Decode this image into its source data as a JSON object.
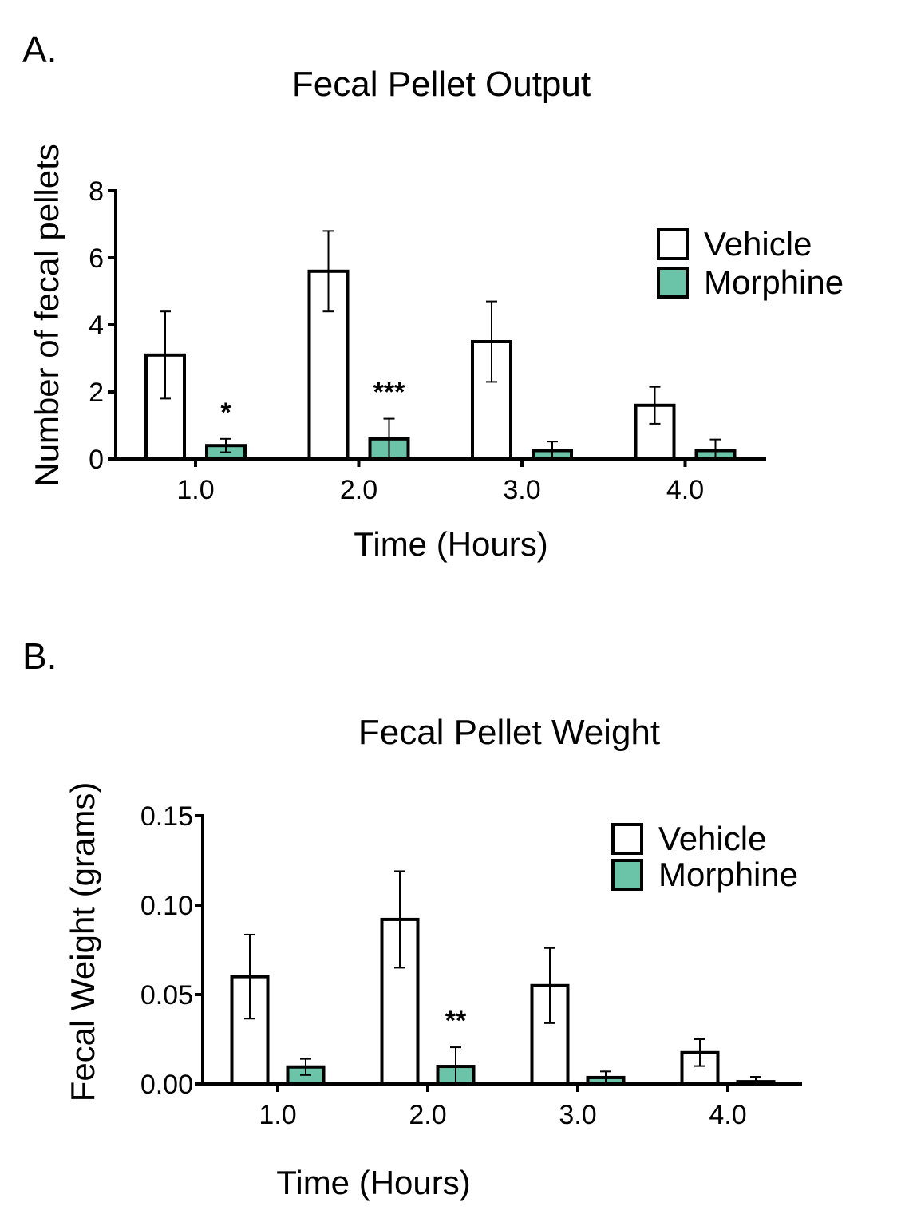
{
  "colors": {
    "vehicle": "#ffffff",
    "morphine": "#6cc4a8",
    "stroke": "#000000"
  },
  "chart_data": [
    {
      "panel_label": "A.",
      "type": "bar",
      "title": "Fecal Pellet Output",
      "xlabel": "Time (Hours)",
      "ylabel": "Number of fecal pellets",
      "categories": [
        "1.0",
        "2.0",
        "3.0",
        "4.0"
      ],
      "ylim": [
        0,
        8
      ],
      "yticks": [
        "0",
        "2",
        "4",
        "6",
        "8"
      ],
      "legend_position": "top-right",
      "series": [
        {
          "name": "Vehicle",
          "values": [
            3.1,
            5.6,
            3.5,
            1.6
          ],
          "error": [
            1.3,
            1.2,
            1.2,
            0.55
          ]
        },
        {
          "name": "Morphine",
          "values": [
            0.4,
            0.6,
            0.25,
            0.25
          ],
          "error": [
            0.2,
            0.6,
            0.27,
            0.33
          ]
        }
      ],
      "annotations": [
        {
          "category": "1.0",
          "series": "Morphine",
          "text": "*"
        },
        {
          "category": "2.0",
          "series": "Morphine",
          "text": "***"
        }
      ]
    },
    {
      "panel_label": "B.",
      "type": "bar",
      "title": "Fecal Pellet Weight",
      "xlabel": "Time (Hours)",
      "ylabel": "Fecal Weight (grams)",
      "categories": [
        "1.0",
        "2.0",
        "3.0",
        "4.0"
      ],
      "ylim": [
        0,
        0.15
      ],
      "yticks": [
        "0.00",
        "0.05",
        "0.10",
        "0.15"
      ],
      "legend_position": "top-right",
      "series": [
        {
          "name": "Vehicle",
          "values": [
            0.06,
            0.092,
            0.055,
            0.0175
          ],
          "error": [
            0.0235,
            0.027,
            0.021,
            0.0075
          ]
        },
        {
          "name": "Morphine",
          "values": [
            0.0095,
            0.0098,
            0.0036,
            0.0013
          ],
          "error": [
            0.0045,
            0.0107,
            0.0034,
            0.0027
          ]
        }
      ],
      "annotations": [
        {
          "category": "2.0",
          "series": "Morphine",
          "text": "**"
        }
      ]
    }
  ]
}
